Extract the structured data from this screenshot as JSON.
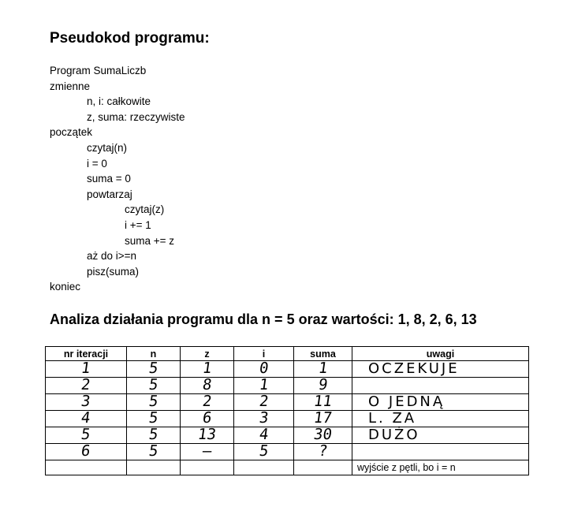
{
  "title": "Pseudokod programu:",
  "code_lines": [
    {
      "text": "Program SumaLiczb",
      "indent": 0
    },
    {
      "text": "zmienne",
      "indent": 0
    },
    {
      "text": "n, i: całkowite",
      "indent": 1
    },
    {
      "text": "z, suma: rzeczywiste",
      "indent": 1
    },
    {
      "text": "początek",
      "indent": 0
    },
    {
      "text": "czytaj(n)",
      "indent": 1
    },
    {
      "text": "i = 0",
      "indent": 1
    },
    {
      "text": "suma = 0",
      "indent": 1
    },
    {
      "text": "powtarzaj",
      "indent": 1
    },
    {
      "text": "czytaj(z)",
      "indent": 2
    },
    {
      "text": "i += 1",
      "indent": 2
    },
    {
      "text": "suma += z",
      "indent": 2
    },
    {
      "text": "aż do i>=n",
      "indent": 1
    },
    {
      "text": "pisz(suma)",
      "indent": 1
    },
    {
      "text": "koniec",
      "indent": 0
    }
  ],
  "subtitle": "Analiza działania programu dla n = 5 oraz wartości: 1, 8, 2, 6, 13",
  "table": {
    "headers": [
      "nr iteracji",
      "n",
      "z",
      "i",
      "suma",
      "uwagi"
    ],
    "rows": [
      {
        "nr": "1",
        "n": "5",
        "z": "1",
        "i": "0",
        "suma": "1",
        "uwagi": "OCZEKUJE"
      },
      {
        "nr": "2",
        "n": "5",
        "z": "8",
        "i": "1",
        "suma": "9",
        "uwagi": ""
      },
      {
        "nr": "3",
        "n": "5",
        "z": "2",
        "i": "2",
        "suma": "11",
        "uwagi": "O JEDNĄ"
      },
      {
        "nr": "4",
        "n": "5",
        "z": "6",
        "i": "3",
        "suma": "17",
        "uwagi": "L. ZA"
      },
      {
        "nr": "5",
        "n": "5",
        "z": "13",
        "i": "4",
        "suma": "30",
        "uwagi": "DUŻO"
      },
      {
        "nr": "6",
        "n": "5",
        "z": "—",
        "i": "5",
        "suma": "?",
        "uwagi": ""
      }
    ],
    "footer_note": "wyjście z pętli, bo i = n"
  }
}
